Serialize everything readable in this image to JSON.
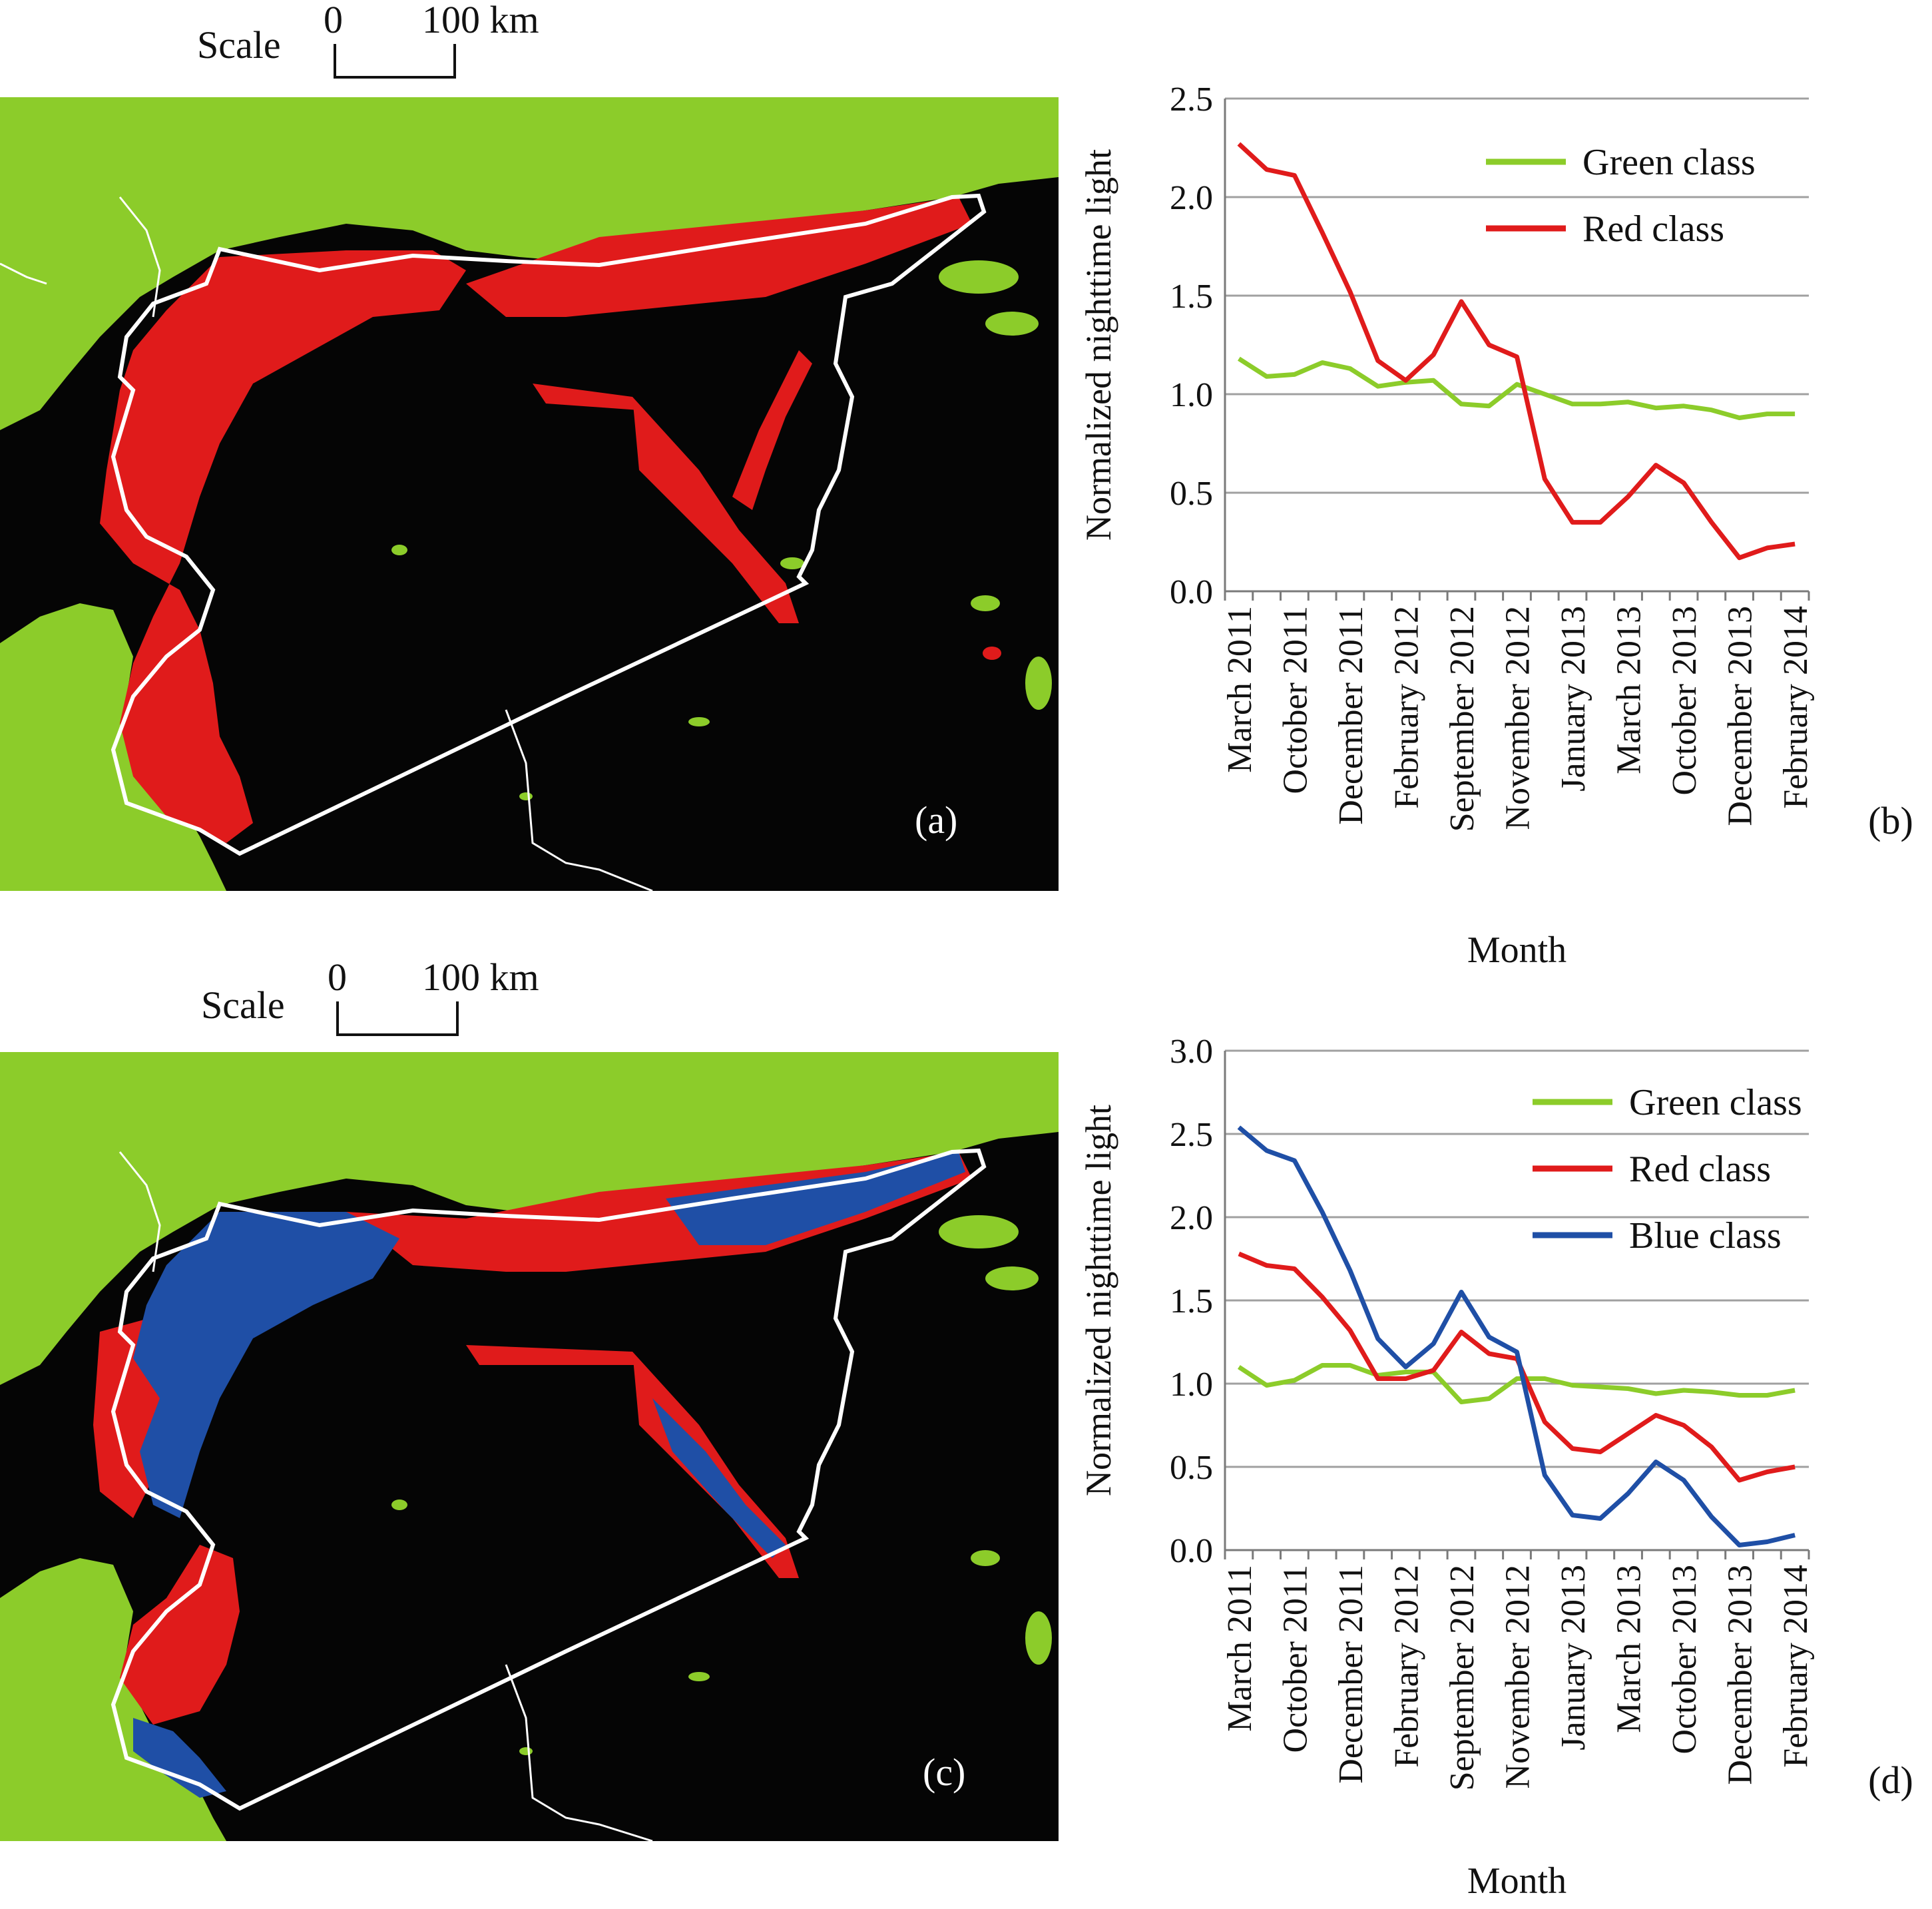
{
  "scale_top": {
    "label": "Scale",
    "zero": "0",
    "hundred": "100 km"
  },
  "scale_bottom": {
    "label": "Scale",
    "zero": "0",
    "hundred": "100 km"
  },
  "panels": {
    "a": "(a)",
    "b": "(b)",
    "c": "(c)",
    "d": "(d)"
  },
  "colors": {
    "green": "#8ccc2a",
    "red": "#e01b1b",
    "blue": "#1f4fa6",
    "map_bg": "#050505",
    "border": "#ffffff"
  },
  "chart_data": [
    {
      "type": "line",
      "panel": "(b)",
      "ylabel": "Normalized nighttime light",
      "xlabel": "Month",
      "ylim": [
        0,
        2.5
      ],
      "yticks": [
        "0.0",
        "0.5",
        "1.0",
        "1.5",
        "2.0",
        "2.5"
      ],
      "x_tick_labels": [
        "March 2011",
        "October 2011",
        "December 2011",
        "February 2012",
        "September 2012",
        "November 2012",
        "January 2013",
        "March 2013",
        "October 2013",
        "December 2013",
        "February 2014"
      ],
      "legend_position": "top-right",
      "grid": true,
      "series": [
        {
          "name": "Green class",
          "color": "#8ccc2a",
          "values": [
            1.18,
            1.09,
            1.1,
            1.16,
            1.13,
            1.04,
            1.06,
            1.07,
            0.95,
            0.94,
            1.05,
            1.0,
            0.95,
            0.95,
            0.96,
            0.93,
            0.94,
            0.92,
            0.88,
            0.9,
            0.9
          ]
        },
        {
          "name": "Red class",
          "color": "#e01b1b",
          "values": [
            2.27,
            2.14,
            2.11,
            1.82,
            1.52,
            1.17,
            1.07,
            1.2,
            1.47,
            1.25,
            1.19,
            0.57,
            0.35,
            0.35,
            0.48,
            0.64,
            0.55,
            0.35,
            0.17,
            0.22,
            0.24
          ]
        }
      ]
    },
    {
      "type": "line",
      "panel": "(d)",
      "ylabel": "Normalized nighttime light",
      "xlabel": "Month",
      "ylim": [
        0,
        3.0
      ],
      "yticks": [
        "0.0",
        "0.5",
        "1.0",
        "1.5",
        "2.0",
        "2.5",
        "3.0"
      ],
      "x_tick_labels": [
        "March 2011",
        "October 2011",
        "December 2011",
        "February 2012",
        "September 2012",
        "November 2012",
        "January 2013",
        "March 2013",
        "October 2013",
        "December 2013",
        "February 2014"
      ],
      "legend_position": "top-right",
      "grid": true,
      "series": [
        {
          "name": "Green class",
          "color": "#8ccc2a",
          "values": [
            1.1,
            0.99,
            1.02,
            1.11,
            1.11,
            1.05,
            1.07,
            1.07,
            0.89,
            0.91,
            1.03,
            1.03,
            0.99,
            0.98,
            0.97,
            0.94,
            0.96,
            0.95,
            0.93,
            0.93,
            0.96
          ]
        },
        {
          "name": "Red class",
          "color": "#e01b1b",
          "values": [
            1.78,
            1.71,
            1.69,
            1.52,
            1.32,
            1.03,
            1.03,
            1.08,
            1.31,
            1.18,
            1.15,
            0.77,
            0.61,
            0.59,
            0.7,
            0.81,
            0.75,
            0.62,
            0.42,
            0.47,
            0.5
          ]
        },
        {
          "name": "Blue class",
          "color": "#1f4fa6",
          "values": [
            2.54,
            2.4,
            2.34,
            2.03,
            1.68,
            1.27,
            1.1,
            1.24,
            1.55,
            1.28,
            1.19,
            0.45,
            0.21,
            0.19,
            0.34,
            0.53,
            0.42,
            0.2,
            0.03,
            0.05,
            0.09
          ]
        }
      ]
    }
  ]
}
